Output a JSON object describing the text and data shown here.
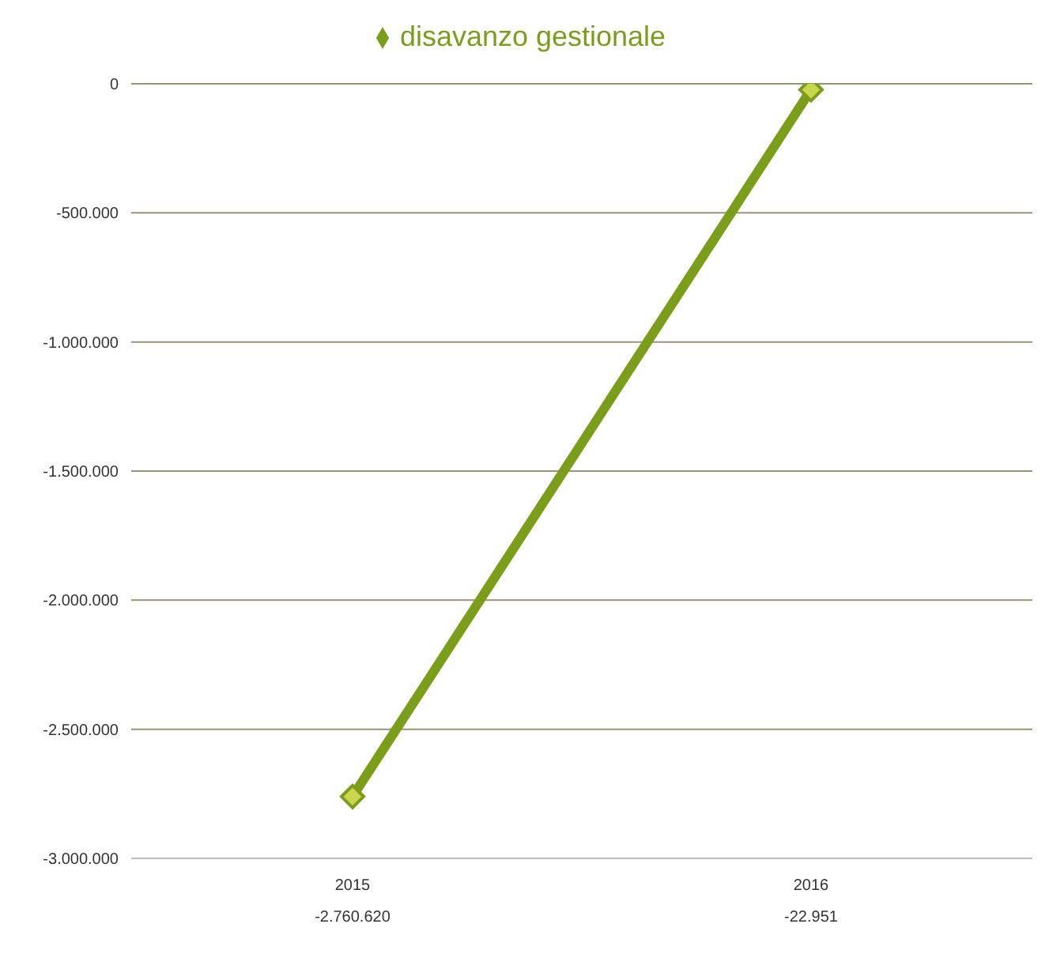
{
  "chart_data": {
    "type": "line",
    "categories": [
      "2015",
      "2016"
    ],
    "series": [
      {
        "name": "disavanzo gestionale",
        "color": "#7a9e1a",
        "values": [
          -2760620,
          -22951
        ],
        "value_labels": [
          "-2.760.620",
          "-22.951"
        ]
      }
    ],
    "ylim": [
      -3000000,
      0
    ],
    "yticks": [
      {
        "value": -3000000,
        "label": "-3.000.000"
      },
      {
        "value": -2500000,
        "label": "-2.500.000"
      },
      {
        "value": -2000000,
        "label": "-2.000.000"
      },
      {
        "value": -1500000,
        "label": "-1.500.000"
      },
      {
        "value": -1000000,
        "label": "-1.000.000"
      },
      {
        "value": -500000,
        "label": "-500.000"
      },
      0
    ],
    "grid": "y",
    "legend": "top",
    "marker": "diamond",
    "line_style": "solid"
  }
}
